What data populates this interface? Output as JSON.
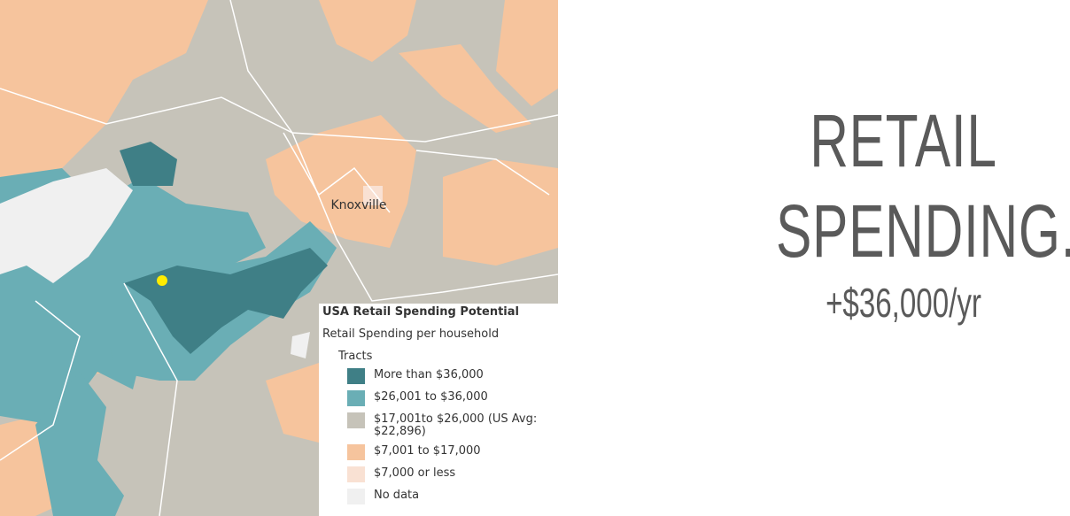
{
  "map": {
    "city_label": "Knoxville"
  },
  "legend": {
    "title": "USA Retail Spending Potential",
    "subtitle": "Retail Spending per household",
    "group": "Tracts",
    "items": [
      {
        "label": "More than $36,000",
        "color": "#3f7f86"
      },
      {
        "label": "$26,001 to $36,000",
        "color": "#6aaeb5"
      },
      {
        "label": "$17,001to $26,000 (US Avg: $22,896)",
        "color": "#c6c3b9"
      },
      {
        "label": "$7,001 to $17,000",
        "color": "#f6c49d"
      },
      {
        "label": "$7,000 or less",
        "color": "#f9e1d3"
      },
      {
        "label": "No data",
        "color": "#f0f0f0"
      }
    ]
  },
  "headline": {
    "lines": [
      "RETAIL",
      "SPENDING."
    ],
    "amount": "+$36,000/yr"
  }
}
